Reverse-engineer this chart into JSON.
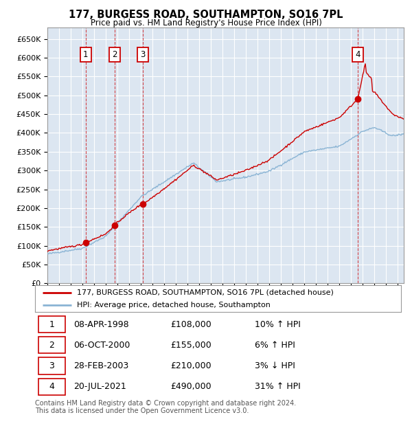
{
  "title": "177, BURGESS ROAD, SOUTHAMPTON, SO16 7PL",
  "subtitle": "Price paid vs. HM Land Registry's House Price Index (HPI)",
  "background_color": "#dce6f1",
  "grid_color": "#ffffff",
  "red_line_color": "#cc0000",
  "blue_line_color": "#8ab4d4",
  "annotation_box_color": "#cc0000",
  "ylim": [
    0,
    680000
  ],
  "yticks": [
    0,
    50000,
    100000,
    150000,
    200000,
    250000,
    300000,
    350000,
    400000,
    450000,
    500000,
    550000,
    600000,
    650000
  ],
  "sales": [
    {
      "date_x": 1998.27,
      "price": 108000,
      "label": "1"
    },
    {
      "date_x": 2000.76,
      "price": 155000,
      "label": "2"
    },
    {
      "date_x": 2003.16,
      "price": 210000,
      "label": "3"
    },
    {
      "date_x": 2021.55,
      "price": 490000,
      "label": "4"
    }
  ],
  "table_data": [
    [
      "1",
      "08-APR-1998",
      "£108,000",
      "10% ↑ HPI"
    ],
    [
      "2",
      "06-OCT-2000",
      "£155,000",
      "6% ↑ HPI"
    ],
    [
      "3",
      "28-FEB-2003",
      "£210,000",
      "3% ↓ HPI"
    ],
    [
      "4",
      "20-JUL-2021",
      "£490,000",
      "31% ↑ HPI"
    ]
  ],
  "legend_entries": [
    "177, BURGESS ROAD, SOUTHAMPTON, SO16 7PL (detached house)",
    "HPI: Average price, detached house, Southampton"
  ],
  "footer": "Contains HM Land Registry data © Crown copyright and database right 2024.\nThis data is licensed under the Open Government Licence v3.0.",
  "xmin": 1995,
  "xmax": 2025.5
}
